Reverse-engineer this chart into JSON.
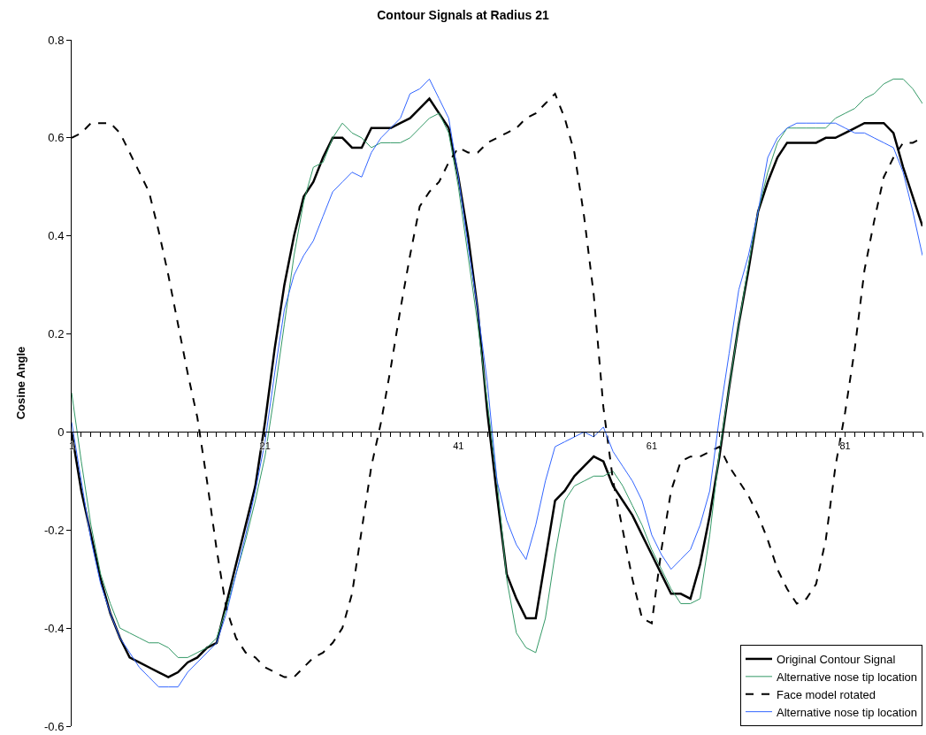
{
  "chart_data": {
    "type": "line",
    "title": "Contour Signals at Radius 21",
    "ylabel": "Cosine Angle",
    "x": [
      1,
      2,
      3,
      4,
      5,
      6,
      7,
      8,
      9,
      10,
      11,
      12,
      13,
      14,
      15,
      16,
      17,
      18,
      19,
      20,
      21,
      22,
      23,
      24,
      25,
      26,
      27,
      28,
      29,
      30,
      31,
      32,
      33,
      34,
      35,
      36,
      37,
      38,
      39,
      40,
      41,
      42,
      43,
      44,
      45,
      46,
      47,
      48,
      49,
      50,
      51,
      52,
      53,
      54,
      55,
      56,
      57,
      58,
      59,
      60,
      61,
      62,
      63,
      64,
      65,
      66,
      67,
      68,
      69,
      70,
      71,
      72,
      73,
      74,
      75,
      76,
      77,
      78,
      79,
      80,
      81,
      82,
      83,
      84,
      85,
      86,
      87,
      88,
      89
    ],
    "xlim": [
      1,
      89
    ],
    "xticks": [
      1,
      {
        "value": 2,
        "label": null
      },
      {
        "value": 3,
        "label": null
      },
      {
        "value": 4,
        "label": null
      },
      {
        "value": 5,
        "label": null
      },
      {
        "value": 6,
        "label": null
      },
      {
        "value": 7,
        "label": null
      },
      {
        "value": 8,
        "label": null
      },
      {
        "value": 9,
        "label": null
      },
      {
        "value": 10,
        "label": null
      },
      {
        "value": 11,
        "label": null
      },
      {
        "value": 12,
        "label": null
      },
      {
        "value": 13,
        "label": null
      },
      {
        "value": 14,
        "label": null
      },
      {
        "value": 15,
        "label": null
      },
      {
        "value": 16,
        "label": null
      },
      {
        "value": 17,
        "label": null
      },
      {
        "value": 18,
        "label": null
      },
      {
        "value": 19,
        "label": null
      },
      {
        "value": 20,
        "label": null
      },
      21,
      {
        "value": 22,
        "label": null
      },
      {
        "value": 23,
        "label": null
      },
      {
        "value": 24,
        "label": null
      },
      {
        "value": 25,
        "label": null
      },
      {
        "value": 26,
        "label": null
      },
      {
        "value": 27,
        "label": null
      },
      {
        "value": 28,
        "label": null
      },
      {
        "value": 29,
        "label": null
      },
      {
        "value": 30,
        "label": null
      },
      {
        "value": 31,
        "label": null
      },
      {
        "value": 32,
        "label": null
      },
      {
        "value": 33,
        "label": null
      },
      {
        "value": 34,
        "label": null
      },
      {
        "value": 35,
        "label": null
      },
      {
        "value": 36,
        "label": null
      },
      {
        "value": 37,
        "label": null
      },
      {
        "value": 38,
        "label": null
      },
      {
        "value": 39,
        "label": null
      },
      {
        "value": 40,
        "label": null
      },
      41,
      {
        "value": 42,
        "label": null
      },
      {
        "value": 43,
        "label": null
      },
      {
        "value": 44,
        "label": null
      },
      {
        "value": 45,
        "label": null
      },
      {
        "value": 46,
        "label": null
      },
      {
        "value": 47,
        "label": null
      },
      {
        "value": 48,
        "label": null
      },
      {
        "value": 49,
        "label": null
      },
      {
        "value": 50,
        "label": null
      },
      {
        "value": 51,
        "label": null
      },
      {
        "value": 52,
        "label": null
      },
      {
        "value": 53,
        "label": null
      },
      {
        "value": 54,
        "label": null
      },
      {
        "value": 55,
        "label": null
      },
      {
        "value": 56,
        "label": null
      },
      {
        "value": 57,
        "label": null
      },
      {
        "value": 58,
        "label": null
      },
      {
        "value": 59,
        "label": null
      },
      {
        "value": 60,
        "label": null
      },
      61,
      {
        "value": 62,
        "label": null
      },
      {
        "value": 63,
        "label": null
      },
      {
        "value": 64,
        "label": null
      },
      {
        "value": 65,
        "label": null
      },
      {
        "value": 66,
        "label": null
      },
      {
        "value": 67,
        "label": null
      },
      {
        "value": 68,
        "label": null
      },
      {
        "value": 69,
        "label": null
      },
      {
        "value": 70,
        "label": null
      },
      {
        "value": 71,
        "label": null
      },
      {
        "value": 72,
        "label": null
      },
      {
        "value": 73,
        "label": null
      },
      {
        "value": 74,
        "label": null
      },
      {
        "value": 75,
        "label": null
      },
      {
        "value": 76,
        "label": null
      },
      {
        "value": 77,
        "label": null
      },
      {
        "value": 78,
        "label": null
      },
      {
        "value": 79,
        "label": null
      },
      {
        "value": 80,
        "label": null
      },
      81,
      {
        "value": 82,
        "label": null
      },
      {
        "value": 83,
        "label": null
      },
      {
        "value": 84,
        "label": null
      },
      {
        "value": 85,
        "label": null
      },
      {
        "value": 86,
        "label": null
      },
      {
        "value": 87,
        "label": null
      },
      {
        "value": 88,
        "label": null
      },
      {
        "value": 89,
        "label": null
      }
    ],
    "ylim": [
      -0.6,
      0.8
    ],
    "yticks": [
      -0.6,
      -0.4,
      -0.2,
      0,
      0.2,
      0.4,
      0.6,
      0.8
    ],
    "legend": "bottom right",
    "series": [
      {
        "name": "Original Contour Signal",
        "color": "#000000",
        "values": [
          0,
          -0.12,
          -0.21,
          -0.3,
          -0.37,
          -0.42,
          -0.46,
          -0.47,
          -0.48,
          -0.49,
          -0.5,
          -0.49,
          -0.47,
          -0.46,
          -0.44,
          -0.43,
          -0.35,
          -0.27,
          -0.19,
          -0.11,
          0.02,
          0.17,
          0.3,
          0.4,
          0.48,
          0.51,
          0.56,
          0.6,
          0.6,
          0.58,
          0.58,
          0.62,
          0.62,
          0.62,
          0.63,
          0.64,
          0.66,
          0.68,
          0.65,
          0.62,
          0.52,
          0.4,
          0.25,
          0.04,
          -0.13,
          -0.29,
          -0.34,
          -0.38,
          -0.38,
          -0.26,
          -0.14,
          -0.12,
          -0.09,
          -0.07,
          -0.05,
          -0.06,
          -0.11,
          -0.14,
          -0.17,
          -0.21,
          -0.25,
          -0.29,
          -0.33,
          -0.33,
          -0.34,
          -0.27,
          -0.17,
          -0.05,
          0.09,
          0.22,
          0.33,
          0.45,
          0.51,
          0.56,
          0.59,
          0.59,
          0.59,
          0.59,
          0.6,
          0.6,
          0.61,
          0.62,
          0.63,
          0.63,
          0.63,
          0.61,
          0.54,
          0.48,
          0.42
        ]
      },
      {
        "name": "Alternative nose tip location",
        "color": "#339966",
        "values": [
          0.08,
          -0.06,
          -0.19,
          -0.29,
          -0.35,
          -0.4,
          -0.41,
          -0.42,
          -0.43,
          -0.43,
          -0.44,
          -0.46,
          -0.46,
          -0.45,
          -0.44,
          -0.42,
          -0.36,
          -0.29,
          -0.22,
          -0.14,
          -0.05,
          0.08,
          0.22,
          0.36,
          0.47,
          0.54,
          0.55,
          0.6,
          0.63,
          0.61,
          0.6,
          0.58,
          0.59,
          0.59,
          0.59,
          0.6,
          0.62,
          0.64,
          0.65,
          0.61,
          0.5,
          0.36,
          0.22,
          0.06,
          -0.1,
          -0.3,
          -0.41,
          -0.44,
          -0.45,
          -0.38,
          -0.25,
          -0.14,
          -0.11,
          -0.1,
          -0.09,
          -0.09,
          -0.08,
          -0.11,
          -0.15,
          -0.19,
          -0.24,
          -0.28,
          -0.32,
          -0.35,
          -0.35,
          -0.34,
          -0.21,
          -0.04,
          0.09,
          0.22,
          0.34,
          0.45,
          0.53,
          0.59,
          0.62,
          0.62,
          0.62,
          0.62,
          0.62,
          0.64,
          0.65,
          0.66,
          0.68,
          0.69,
          0.71,
          0.72,
          0.72,
          0.7,
          0.67
        ]
      },
      {
        "name": "Face model rotated",
        "color": "#000000",
        "line_style": "dashed",
        "values": [
          0.6,
          0.61,
          0.63,
          0.63,
          0.63,
          0.61,
          0.57,
          0.53,
          0.49,
          0.41,
          0.32,
          0.22,
          0.12,
          0.03,
          -0.1,
          -0.24,
          -0.36,
          -0.42,
          -0.45,
          -0.46,
          -0.48,
          -0.49,
          -0.5,
          -0.5,
          -0.48,
          -0.46,
          -0.45,
          -0.43,
          -0.4,
          -0.33,
          -0.2,
          -0.07,
          0.02,
          0.13,
          0.25,
          0.36,
          0.46,
          0.49,
          0.51,
          0.55,
          0.58,
          0.57,
          0.57,
          0.59,
          0.6,
          0.61,
          0.62,
          0.64,
          0.65,
          0.67,
          0.69,
          0.64,
          0.57,
          0.44,
          0.28,
          0.05,
          -0.1,
          -0.2,
          -0.3,
          -0.38,
          -0.39,
          -0.24,
          -0.12,
          -0.06,
          -0.05,
          -0.05,
          -0.04,
          -0.03,
          -0.07,
          -0.1,
          -0.13,
          -0.17,
          -0.22,
          -0.28,
          -0.32,
          -0.35,
          -0.34,
          -0.31,
          -0.22,
          -0.07,
          0.04,
          0.17,
          0.33,
          0.43,
          0.52,
          0.56,
          0.59,
          0.59,
          0.6
        ]
      },
      {
        "name": "Alternative nose tip location",
        "color": "#3366ff",
        "values": [
          0.02,
          -0.1,
          -0.22,
          -0.31,
          -0.37,
          -0.42,
          -0.45,
          -0.48,
          -0.5,
          -0.52,
          -0.52,
          -0.52,
          -0.49,
          -0.47,
          -0.45,
          -0.43,
          -0.37,
          -0.29,
          -0.21,
          -0.12,
          -0.02,
          0.12,
          0.25,
          0.32,
          0.36,
          0.39,
          0.44,
          0.49,
          0.51,
          0.53,
          0.52,
          0.57,
          0.6,
          0.62,
          0.64,
          0.69,
          0.7,
          0.72,
          0.68,
          0.64,
          0.52,
          0.38,
          0.25,
          0.1,
          -0.1,
          -0.18,
          -0.23,
          -0.26,
          -0.19,
          -0.1,
          -0.03,
          -0.02,
          -0.01,
          0,
          -0.01,
          0.01,
          -0.04,
          -0.07,
          -0.1,
          -0.14,
          -0.21,
          -0.25,
          -0.28,
          -0.26,
          -0.24,
          -0.19,
          -0.12,
          0.03,
          0.16,
          0.29,
          0.36,
          0.45,
          0.56,
          0.6,
          0.62,
          0.63,
          0.63,
          0.63,
          0.63,
          0.63,
          0.62,
          0.61,
          0.61,
          0.6,
          0.59,
          0.58,
          0.53,
          0.45,
          0.36
        ]
      }
    ]
  }
}
